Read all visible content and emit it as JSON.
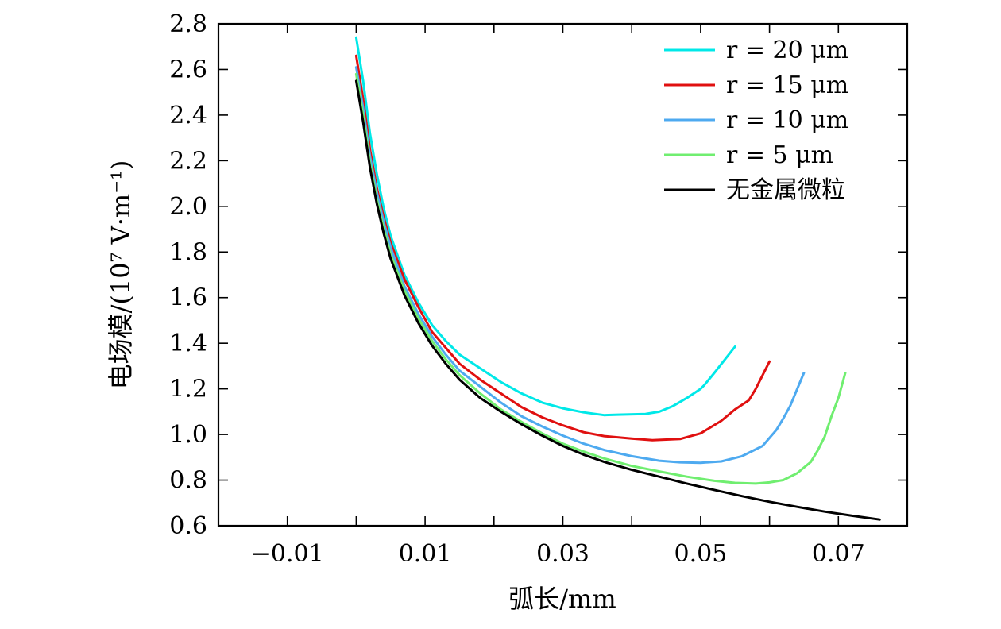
{
  "chart_data": {
    "type": "line",
    "xlabel": "弧长/mm",
    "ylabel": "电场模/(10⁷ V·m⁻¹)",
    "xlim": [
      -0.02,
      0.08
    ],
    "ylim": [
      0.6,
      2.8
    ],
    "x_ticks": [
      -0.01,
      0.01,
      0.03,
      0.05,
      0.07
    ],
    "x_tick_labels": [
      "−0.01",
      "0.01",
      "0.03",
      "0.05",
      "0.07"
    ],
    "x_minor_ticks": [
      -0.01,
      0.0,
      0.01,
      0.02,
      0.03,
      0.04,
      0.05,
      0.06,
      0.07
    ],
    "y_ticks": [
      0.6,
      0.8,
      1.0,
      1.2,
      1.4,
      1.6,
      1.8,
      2.0,
      2.2,
      2.4,
      2.6,
      2.8
    ],
    "y_tick_labels": [
      "0.6",
      "0.8",
      "1.0",
      "1.2",
      "1.4",
      "1.6",
      "1.8",
      "2.0",
      "2.2",
      "2.4",
      "2.6",
      "2.8"
    ],
    "grid": false,
    "legend_position": "top-right",
    "series": [
      {
        "name": "r = 20 μm",
        "color": "#00e8e8",
        "points": [
          [
            0.0,
            2.74
          ],
          [
            0.001,
            2.55
          ],
          [
            0.002,
            2.32
          ],
          [
            0.003,
            2.14
          ],
          [
            0.004,
            1.99
          ],
          [
            0.005,
            1.87
          ],
          [
            0.007,
            1.7
          ],
          [
            0.009,
            1.58
          ],
          [
            0.011,
            1.48
          ],
          [
            0.013,
            1.41
          ],
          [
            0.015,
            1.35
          ],
          [
            0.018,
            1.29
          ],
          [
            0.021,
            1.23
          ],
          [
            0.024,
            1.18
          ],
          [
            0.027,
            1.14
          ],
          [
            0.03,
            1.115
          ],
          [
            0.033,
            1.097
          ],
          [
            0.036,
            1.085
          ],
          [
            0.038,
            1.087
          ],
          [
            0.042,
            1.09
          ],
          [
            0.044,
            1.1
          ],
          [
            0.046,
            1.125
          ],
          [
            0.048,
            1.16
          ],
          [
            0.05,
            1.2
          ],
          [
            0.0505,
            1.215
          ],
          [
            0.052,
            1.27
          ],
          [
            0.055,
            1.385
          ]
        ]
      },
      {
        "name": "r = 15 μm",
        "color": "#e01010",
        "points": [
          [
            0.0,
            2.66
          ],
          [
            0.001,
            2.47
          ],
          [
            0.002,
            2.25
          ],
          [
            0.003,
            2.08
          ],
          [
            0.004,
            1.95
          ],
          [
            0.005,
            1.84
          ],
          [
            0.007,
            1.68
          ],
          [
            0.009,
            1.56
          ],
          [
            0.011,
            1.45
          ],
          [
            0.013,
            1.38
          ],
          [
            0.015,
            1.31
          ],
          [
            0.018,
            1.24
          ],
          [
            0.021,
            1.18
          ],
          [
            0.024,
            1.12
          ],
          [
            0.027,
            1.075
          ],
          [
            0.03,
            1.04
          ],
          [
            0.033,
            1.01
          ],
          [
            0.036,
            0.993
          ],
          [
            0.04,
            0.982
          ],
          [
            0.043,
            0.975
          ],
          [
            0.047,
            0.98
          ],
          [
            0.05,
            1.005
          ],
          [
            0.053,
            1.06
          ],
          [
            0.055,
            1.11
          ],
          [
            0.057,
            1.15
          ],
          [
            0.058,
            1.2
          ],
          [
            0.06,
            1.32
          ]
        ]
      },
      {
        "name": "r = 10 μm",
        "color": "#4eaaf0",
        "points": [
          [
            0.0,
            2.61
          ],
          [
            0.001,
            2.43
          ],
          [
            0.002,
            2.22
          ],
          [
            0.003,
            2.06
          ],
          [
            0.004,
            1.93
          ],
          [
            0.005,
            1.82
          ],
          [
            0.007,
            1.65
          ],
          [
            0.009,
            1.53
          ],
          [
            0.011,
            1.43
          ],
          [
            0.013,
            1.35
          ],
          [
            0.015,
            1.28
          ],
          [
            0.018,
            1.21
          ],
          [
            0.021,
            1.14
          ],
          [
            0.024,
            1.08
          ],
          [
            0.027,
            1.035
          ],
          [
            0.03,
            0.995
          ],
          [
            0.033,
            0.96
          ],
          [
            0.036,
            0.932
          ],
          [
            0.04,
            0.905
          ],
          [
            0.044,
            0.885
          ],
          [
            0.047,
            0.878
          ],
          [
            0.05,
            0.876
          ],
          [
            0.053,
            0.882
          ],
          [
            0.056,
            0.905
          ],
          [
            0.059,
            0.95
          ],
          [
            0.061,
            1.02
          ],
          [
            0.062,
            1.07
          ],
          [
            0.063,
            1.125
          ],
          [
            0.065,
            1.27
          ]
        ]
      },
      {
        "name": "r = 5 μm",
        "color": "#70ee70",
        "points": [
          [
            0.0,
            2.58
          ],
          [
            0.001,
            2.4
          ],
          [
            0.002,
            2.19
          ],
          [
            0.003,
            2.03
          ],
          [
            0.004,
            1.9
          ],
          [
            0.005,
            1.79
          ],
          [
            0.007,
            1.63
          ],
          [
            0.009,
            1.51
          ],
          [
            0.011,
            1.41
          ],
          [
            0.013,
            1.33
          ],
          [
            0.015,
            1.26
          ],
          [
            0.018,
            1.18
          ],
          [
            0.021,
            1.11
          ],
          [
            0.024,
            1.055
          ],
          [
            0.027,
            1.005
          ],
          [
            0.03,
            0.96
          ],
          [
            0.033,
            0.925
          ],
          [
            0.036,
            0.895
          ],
          [
            0.04,
            0.862
          ],
          [
            0.044,
            0.838
          ],
          [
            0.048,
            0.815
          ],
          [
            0.052,
            0.797
          ],
          [
            0.055,
            0.788
          ],
          [
            0.058,
            0.785
          ],
          [
            0.06,
            0.79
          ],
          [
            0.062,
            0.8
          ],
          [
            0.064,
            0.83
          ],
          [
            0.066,
            0.88
          ],
          [
            0.067,
            0.93
          ],
          [
            0.068,
            0.99
          ],
          [
            0.069,
            1.08
          ],
          [
            0.07,
            1.16
          ],
          [
            0.071,
            1.27
          ]
        ]
      },
      {
        "name": "无金属微粒",
        "color": "#000000",
        "points": [
          [
            0.0,
            2.55
          ],
          [
            0.001,
            2.37
          ],
          [
            0.002,
            2.17
          ],
          [
            0.003,
            2.01
          ],
          [
            0.004,
            1.88
          ],
          [
            0.005,
            1.77
          ],
          [
            0.007,
            1.61
          ],
          [
            0.009,
            1.49
          ],
          [
            0.011,
            1.39
          ],
          [
            0.013,
            1.31
          ],
          [
            0.015,
            1.24
          ],
          [
            0.018,
            1.16
          ],
          [
            0.021,
            1.1
          ],
          [
            0.024,
            1.045
          ],
          [
            0.027,
            0.995
          ],
          [
            0.03,
            0.95
          ],
          [
            0.033,
            0.912
          ],
          [
            0.036,
            0.88
          ],
          [
            0.04,
            0.845
          ],
          [
            0.044,
            0.815
          ],
          [
            0.048,
            0.785
          ],
          [
            0.052,
            0.757
          ],
          [
            0.056,
            0.73
          ],
          [
            0.06,
            0.705
          ],
          [
            0.064,
            0.683
          ],
          [
            0.068,
            0.662
          ],
          [
            0.072,
            0.644
          ],
          [
            0.076,
            0.627
          ]
        ]
      }
    ]
  }
}
